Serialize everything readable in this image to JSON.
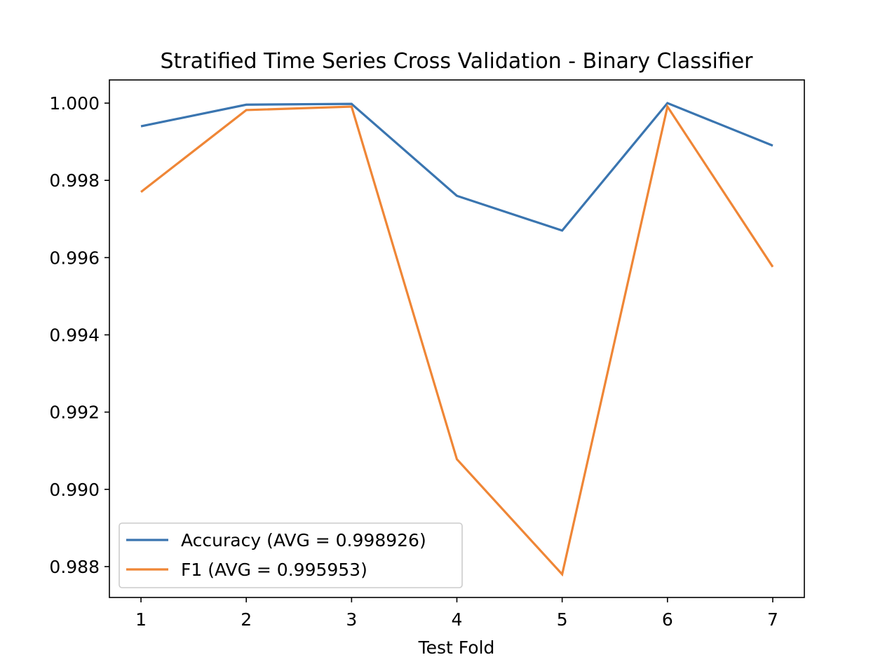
{
  "chart_data": {
    "type": "line",
    "title": "Stratified Time Series Cross Validation - Binary Classifier",
    "xlabel": "Test Fold",
    "ylabel": "",
    "x": [
      1,
      2,
      3,
      4,
      5,
      6,
      7
    ],
    "xlim": [
      0.7,
      7.3
    ],
    "ylim": [
      0.9872,
      1.0006
    ],
    "xticks": [
      1,
      2,
      3,
      4,
      5,
      6,
      7
    ],
    "xtick_labels": [
      "1",
      "2",
      "3",
      "4",
      "5",
      "6",
      "7"
    ],
    "yticks": [
      0.988,
      0.99,
      0.992,
      0.994,
      0.996,
      0.998,
      1.0
    ],
    "ytick_labels": [
      "0.988",
      "0.990",
      "0.992",
      "0.994",
      "0.996",
      "0.998",
      "1.000"
    ],
    "grid": false,
    "legend_position": "lower left",
    "series": [
      {
        "name": "Accuracy (AVG = 0.998926)",
        "color": "#3a75b0",
        "values": [
          0.9994,
          0.99996,
          0.99998,
          0.9976,
          0.9967,
          1.0,
          0.9989
        ]
      },
      {
        "name": "F1 (AVG = 0.995953)",
        "color": "#ef8636",
        "values": [
          0.9977,
          0.99982,
          0.99991,
          0.99078,
          0.9878,
          0.99991,
          0.99576
        ]
      }
    ]
  }
}
